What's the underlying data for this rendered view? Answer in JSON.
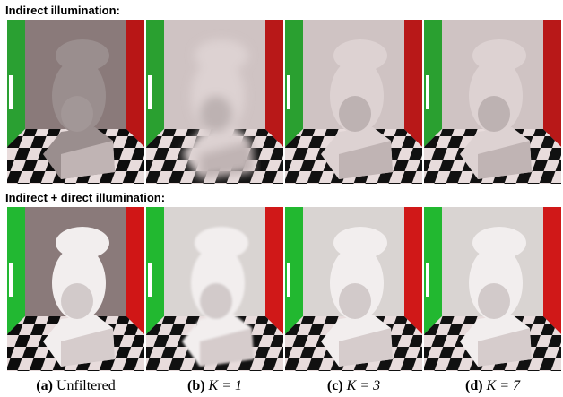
{
  "rows": [
    {
      "heading": "Indirect illumination:"
    },
    {
      "heading": "Indirect + direct illumination:"
    }
  ],
  "captions": [
    {
      "label": "(a)",
      "text": "Unfiltered"
    },
    {
      "label": "(b)",
      "text": "K = 1"
    },
    {
      "label": "(c)",
      "text": "K = 3"
    },
    {
      "label": "(d)",
      "text": "K = 7"
    }
  ]
}
